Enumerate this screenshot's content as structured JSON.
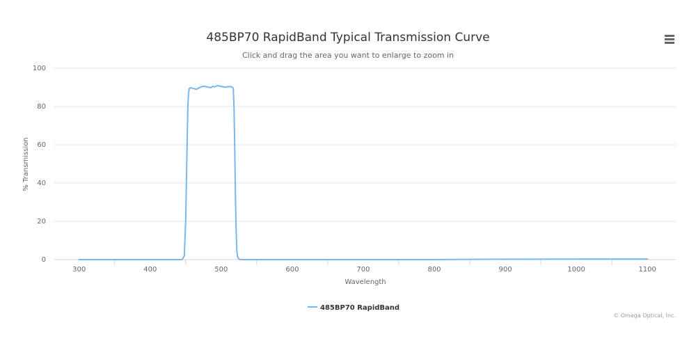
{
  "chart_data": {
    "type": "line",
    "title": "485BP70 RapidBand Typical Transmission Curve",
    "subtitle": "Click and drag the area you want to enlarge to zoom in",
    "xlabel": "Wavelength",
    "ylabel": "% Transmission",
    "xlim": [
      265,
      1140
    ],
    "ylim": [
      0,
      100
    ],
    "x_ticks": [
      300,
      400,
      500,
      600,
      700,
      800,
      900,
      1000,
      1100
    ],
    "y_ticks": [
      0,
      20,
      40,
      60,
      80,
      100
    ],
    "grid": "horizontal",
    "legend_position": "bottom-center",
    "series": [
      {
        "name": "485BP70 RapidBand",
        "color": "#7cb5ec",
        "x": [
          300,
          445,
          448,
          450,
          452,
          453,
          454,
          455,
          457,
          460,
          465,
          470,
          475,
          480,
          485,
          488,
          490,
          495,
          500,
          505,
          510,
          515,
          517,
          518,
          519,
          520,
          521,
          522,
          523,
          525,
          528,
          600,
          700,
          800,
          900,
          1000,
          1100
        ],
        "y": [
          0,
          0,
          2,
          20,
          60,
          80,
          87,
          89.3,
          89.8,
          89.5,
          89.0,
          90.0,
          90.6,
          90.3,
          89.8,
          90.6,
          90.2,
          90.9,
          90.5,
          90.1,
          90.4,
          90.3,
          89.5,
          80,
          60,
          35,
          15,
          5,
          1.5,
          0.3,
          0,
          0,
          0,
          0,
          0.2,
          0.3,
          0.3
        ]
      }
    ]
  },
  "menu": {
    "icon": "hamburger-menu-icon"
  },
  "credits": "© Omega Optical, Inc."
}
